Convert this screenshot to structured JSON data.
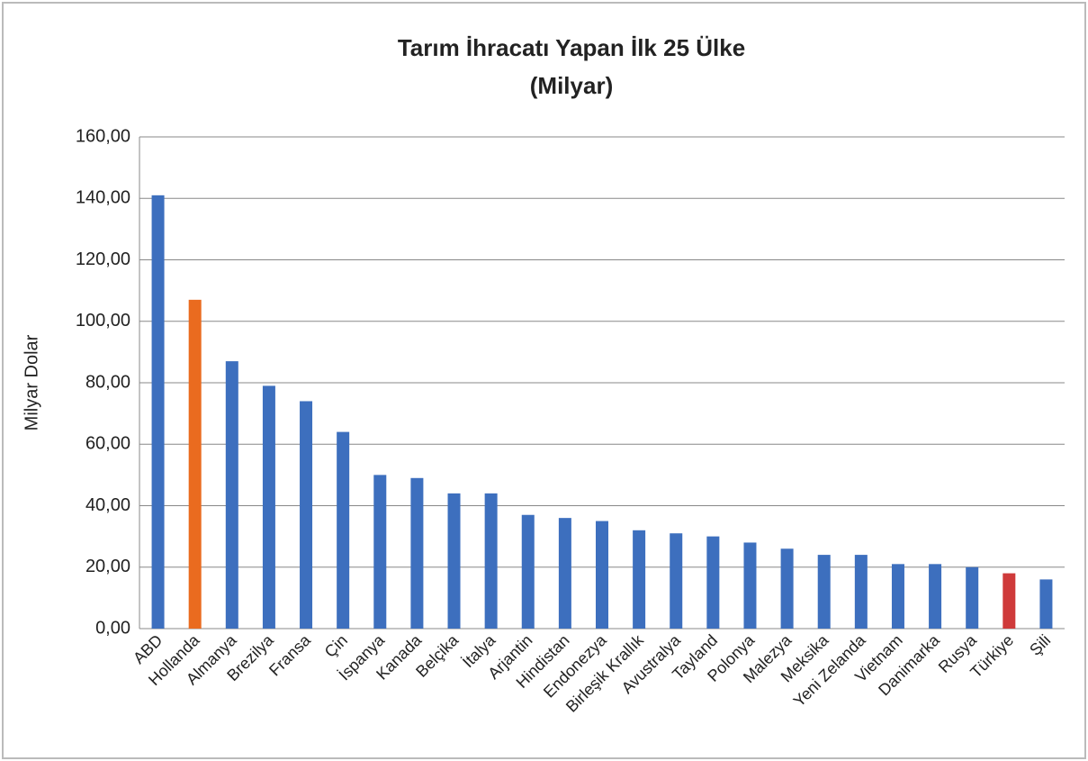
{
  "chart_data": {
    "type": "bar",
    "title": "Tarım İhracatı Yapan İlk 25 Ülke",
    "subtitle": "(Milyar)",
    "y_label": "Milyar Dolar",
    "categories": [
      "ABD",
      "Hollanda",
      "Almanya",
      "Brezilya",
      "Fransa",
      "Çin",
      "İspanya",
      "Kanada",
      "Belçika",
      "İtalya",
      "Arjantin",
      "Hindistan",
      "Endonezya",
      "Birleşik Krallık",
      "Avustralya",
      "Tayland",
      "Polonya",
      "Malezya",
      "Meksika",
      "Yeni Zelanda",
      "Vietnam",
      "Danimarka",
      "Rusya",
      "Türkiye",
      "Şili"
    ],
    "values": [
      141,
      107,
      87,
      79,
      74,
      64,
      50,
      49,
      44,
      44,
      37,
      36,
      35,
      32,
      31,
      30,
      28,
      26,
      24,
      24,
      21,
      21,
      20,
      18,
      16
    ],
    "colors": [
      "#3d6fbe",
      "#ea6b1f",
      "#3d6fbe",
      "#3d6fbe",
      "#3d6fbe",
      "#3d6fbe",
      "#3d6fbe",
      "#3d6fbe",
      "#3d6fbe",
      "#3d6fbe",
      "#3d6fbe",
      "#3d6fbe",
      "#3d6fbe",
      "#3d6fbe",
      "#3d6fbe",
      "#3d6fbe",
      "#3d6fbe",
      "#3d6fbe",
      "#3d6fbe",
      "#3d6fbe",
      "#3d6fbe",
      "#3d6fbe",
      "#3d6fbe",
      "#cf3a3a",
      "#3d6fbe"
    ],
    "ylim": [
      0,
      160
    ],
    "yticks": [
      {
        "value": 0,
        "label": "0,00"
      },
      {
        "value": 20,
        "label": "20,00"
      },
      {
        "value": 40,
        "label": "40,00"
      },
      {
        "value": 60,
        "label": "60,00"
      },
      {
        "value": 80,
        "label": "80,00"
      },
      {
        "value": 100,
        "label": "100,00"
      },
      {
        "value": 120,
        "label": "120,00"
      },
      {
        "value": 140,
        "label": "140,00"
      },
      {
        "value": 160,
        "label": "160,00"
      }
    ],
    "grid": true
  }
}
